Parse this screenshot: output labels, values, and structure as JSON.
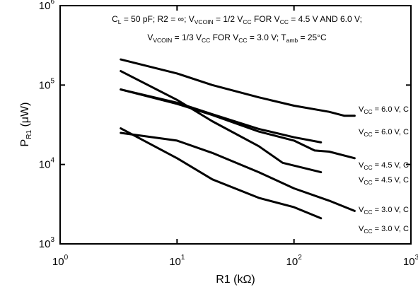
{
  "chart_data": {
    "type": "line",
    "x_scale": "log",
    "y_scale": "log",
    "xlim": [
      1,
      1000
    ],
    "ylim": [
      1000,
      1000000
    ],
    "x_ticks": [
      {
        "base": "10",
        "exp": "0"
      },
      {
        "base": "10",
        "exp": "1"
      },
      {
        "base": "10",
        "exp": "2"
      },
      {
        "base": "10",
        "exp": "3"
      }
    ],
    "y_ticks": [
      {
        "base": "10",
        "exp": "3"
      },
      {
        "base": "10",
        "exp": "4"
      },
      {
        "base": "10",
        "exp": "5"
      },
      {
        "base": "10",
        "exp": "6"
      }
    ],
    "xlabel": "R1 (kΩ)",
    "ylabel": {
      "main": "P",
      "sub": "R1",
      "unit": " (μW)"
    },
    "conditions": {
      "line1": [
        {
          "t": "C"
        },
        {
          "t": "L",
          "sub": true
        },
        {
          "t": " = 50 pF; R2 = ∞; V"
        },
        {
          "t": "VCOIN",
          "sub": true
        },
        {
          "t": " = 1/2 V"
        },
        {
          "t": "CC",
          "sub": true
        },
        {
          "t": " FOR V"
        },
        {
          "t": "CC",
          "sub": true
        },
        {
          "t": " = 4.5 V AND 6.0 V;"
        }
      ],
      "line2": [
        {
          "t": "V"
        },
        {
          "t": "VCOIN",
          "sub": true
        },
        {
          "t": " = 1/3 V"
        },
        {
          "t": "CC",
          "sub": true
        },
        {
          "t": " FOR V"
        },
        {
          "t": "CC",
          "sub": true
        },
        {
          "t": " = 3.0 V; T"
        },
        {
          "t": "amb",
          "sub": true
        },
        {
          "t": " = 25°C"
        }
      ]
    },
    "series": [
      {
        "name": "V_CC = 6.0 V, C",
        "label_parts": [
          {
            "t": "V"
          },
          {
            "t": "CC",
            "sub": true
          },
          {
            "t": " = 6.0 V, C"
          }
        ],
        "x": [
          3.3,
          10,
          20,
          50,
          100,
          200,
          270,
          330
        ],
        "y": [
          210000,
          140000,
          100000,
          70000,
          55000,
          46000,
          41000,
          41000
        ]
      },
      {
        "name": "V_CC = 6.0 V, C",
        "label_parts": [
          {
            "t": "V"
          },
          {
            "t": "CC",
            "sub": true
          },
          {
            "t": " = 6.0 V, C"
          }
        ],
        "x": [
          3.3,
          10,
          20,
          50,
          100,
          170
        ],
        "y": [
          88000,
          60000,
          43000,
          28000,
          22000,
          19000
        ]
      },
      {
        "name": "V_CC = 4.5 V, C",
        "label_parts": [
          {
            "t": "V"
          },
          {
            "t": "CC",
            "sub": true
          },
          {
            "t": " = 4.5 V, C"
          }
        ],
        "x": [
          3.3,
          10,
          20,
          50,
          100,
          150,
          200,
          330
        ],
        "y": [
          88000,
          58000,
          42000,
          26000,
          20000,
          15000,
          14500,
          12000
        ]
      },
      {
        "name": "V_CC = 4.5 V, C",
        "label_parts": [
          {
            "t": "V"
          },
          {
            "t": "CC",
            "sub": true
          },
          {
            "t": " = 4.5 V, C"
          }
        ],
        "x": [
          3.3,
          10,
          20,
          50,
          80,
          170
        ],
        "y": [
          150000,
          65000,
          35000,
          17000,
          10500,
          8000
        ]
      },
      {
        "name": "V_CC = 3.0 V, C",
        "label_parts": [
          {
            "t": "V"
          },
          {
            "t": "CC",
            "sub": true
          },
          {
            "t": " = 3.0 V, C"
          }
        ],
        "x": [
          3.3,
          10,
          20,
          50,
          100,
          200,
          330
        ],
        "y": [
          25000,
          20000,
          14000,
          8000,
          5000,
          3500,
          2600
        ]
      },
      {
        "name": "V_CC = 3.0 V, C",
        "label_parts": [
          {
            "t": "V"
          },
          {
            "t": "CC",
            "sub": true
          },
          {
            "t": " = 3.0 V, C"
          }
        ],
        "x": [
          3.3,
          10,
          20,
          50,
          100,
          170
        ],
        "y": [
          28500,
          12000,
          6500,
          3800,
          2900,
          2100
        ]
      }
    ]
  }
}
